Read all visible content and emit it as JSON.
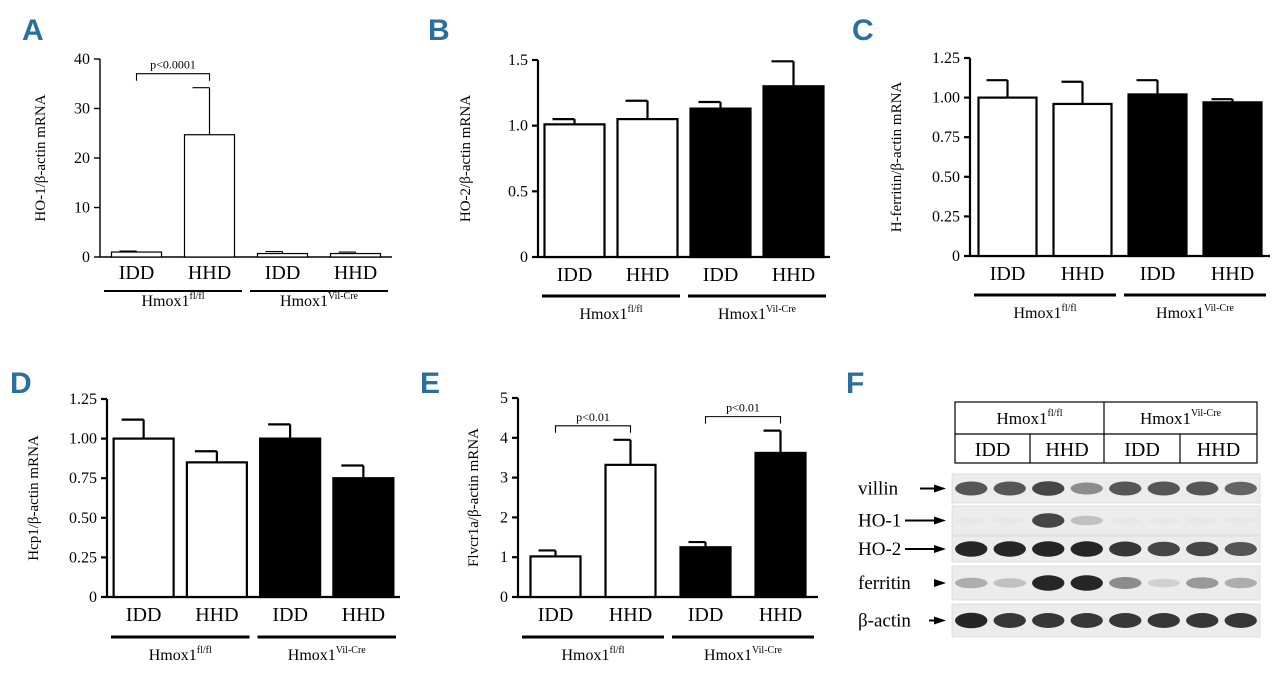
{
  "colors": {
    "panel_letter": "#2a6f9e",
    "axis": "#000000",
    "bar_open": "#ffffff",
    "bar_filled": "#000000",
    "band": "#1a1a1a"
  },
  "chart_data": [
    {
      "panel": "A",
      "type": "bar",
      "ylabel": "HO-1/β-actin mRNA",
      "ylim": [
        0,
        40
      ],
      "ticks": [
        "0",
        "10",
        "20",
        "30",
        "40"
      ],
      "categories": [
        "IDD",
        "HHD",
        "IDD",
        "HHD"
      ],
      "values": [
        1,
        24.7,
        0.7,
        0.7
      ],
      "errors": [
        0.2,
        9.5,
        0.4,
        0.3
      ],
      "fills": [
        "open",
        "open",
        "open",
        "open"
      ],
      "groups": [
        {
          "label": "Hmox1",
          "sup": "fl/fl",
          "bars": [
            0,
            1
          ]
        },
        {
          "label": "Hmox1",
          "sup": "Vil-Cre",
          "bars": [
            2,
            3
          ]
        }
      ],
      "annotations": [
        {
          "text": "p<0.0001",
          "bars": [
            0,
            1
          ]
        }
      ]
    },
    {
      "panel": "B",
      "type": "bar",
      "ylabel": "HO-2/β-actin mRNA",
      "ylim": [
        0,
        1.5
      ],
      "ticks": [
        "0",
        "0.5",
        "1.0",
        "1.5"
      ],
      "categories": [
        "IDD",
        "HHD",
        "IDD",
        "HHD"
      ],
      "values": [
        1.01,
        1.05,
        1.13,
        1.3
      ],
      "errors": [
        0.04,
        0.14,
        0.05,
        0.19
      ],
      "fills": [
        "open",
        "open",
        "filled",
        "filled"
      ],
      "groups": [
        {
          "label": "Hmox1",
          "sup": "fl/fl",
          "bars": [
            0,
            1
          ]
        },
        {
          "label": "Hmox1",
          "sup": "Vil-Cre",
          "bars": [
            2,
            3
          ]
        }
      ],
      "annotations": []
    },
    {
      "panel": "C",
      "type": "bar",
      "ylabel": "H-ferritin/β-actin mRNA",
      "ylim": [
        0,
        1.25
      ],
      "ticks": [
        "0",
        "0.25",
        "0.50",
        "0.75",
        "1.00",
        "1.25"
      ],
      "categories": [
        "IDD",
        "HHD",
        "IDD",
        "HHD"
      ],
      "values": [
        1.0,
        0.96,
        1.02,
        0.97
      ],
      "errors": [
        0.11,
        0.14,
        0.09,
        0.02
      ],
      "fills": [
        "open",
        "open",
        "filled",
        "filled"
      ],
      "groups": [
        {
          "label": "Hmox1",
          "sup": "fl/fl",
          "bars": [
            0,
            1
          ]
        },
        {
          "label": "Hmox1",
          "sup": "Vil-Cre",
          "bars": [
            2,
            3
          ]
        }
      ],
      "annotations": []
    },
    {
      "panel": "D",
      "type": "bar",
      "ylabel": "Hcp1/β-actin mRNA",
      "ylim": [
        0,
        1.25
      ],
      "ticks": [
        "0",
        "0.25",
        "0.50",
        "0.75",
        "1.00",
        "1.25"
      ],
      "categories": [
        "IDD",
        "HHD",
        "IDD",
        "HHD"
      ],
      "values": [
        1.0,
        0.85,
        1.0,
        0.75
      ],
      "errors": [
        0.12,
        0.07,
        0.09,
        0.08
      ],
      "fills": [
        "open",
        "open",
        "filled",
        "filled"
      ],
      "groups": [
        {
          "label": "Hmox1",
          "sup": "fl/fl",
          "bars": [
            0,
            1
          ]
        },
        {
          "label": "Hmox1",
          "sup": "Vil-Cre",
          "bars": [
            2,
            3
          ]
        }
      ],
      "annotations": []
    },
    {
      "panel": "E",
      "type": "bar",
      "ylabel": "Flvcr1a/β-actin mRNA",
      "ylim": [
        0,
        5
      ],
      "ticks": [
        "0",
        "1",
        "2",
        "3",
        "4",
        "5"
      ],
      "categories": [
        "IDD",
        "HHD",
        "IDD",
        "HHD"
      ],
      "values": [
        1.02,
        3.32,
        1.25,
        3.62
      ],
      "errors": [
        0.15,
        0.63,
        0.13,
        0.56
      ],
      "fills": [
        "open",
        "open",
        "filled",
        "filled"
      ],
      "groups": [
        {
          "label": "Hmox1",
          "sup": "fl/fl",
          "bars": [
            0,
            1
          ]
        },
        {
          "label": "Hmox1",
          "sup": "Vil-Cre",
          "bars": [
            2,
            3
          ]
        }
      ],
      "annotations": [
        {
          "text": "p<0.01",
          "bars": [
            0,
            1
          ]
        },
        {
          "text": "p<0.01",
          "bars": [
            2,
            3
          ]
        }
      ]
    }
  ],
  "western_blot": {
    "panel": "F",
    "header_groups": [
      {
        "label": "Hmox1",
        "sup": "fl/fl"
      },
      {
        "label": "Hmox1",
        "sup": "Vil-Cre"
      }
    ],
    "header_diets": [
      "IDD",
      "HHD",
      "IDD",
      "HHD"
    ],
    "lanes": 8,
    "rows": [
      {
        "label": "villin",
        "intensities": [
          0.8,
          0.8,
          0.85,
          0.6,
          0.8,
          0.8,
          0.8,
          0.75
        ]
      },
      {
        "label": "HO-1",
        "intensities": [
          0.05,
          0.05,
          0.85,
          0.35,
          0.05,
          0.05,
          0.05,
          0.05
        ]
      },
      {
        "label": "HO-2",
        "intensities": [
          0.95,
          0.95,
          0.95,
          0.95,
          0.9,
          0.85,
          0.85,
          0.8
        ]
      },
      {
        "label": "ferritin",
        "intensities": [
          0.45,
          0.35,
          0.95,
          0.95,
          0.6,
          0.25,
          0.55,
          0.45
        ]
      },
      {
        "label": "β-actin",
        "intensities": [
          0.95,
          0.9,
          0.9,
          0.9,
          0.9,
          0.9,
          0.9,
          0.9
        ]
      }
    ]
  }
}
